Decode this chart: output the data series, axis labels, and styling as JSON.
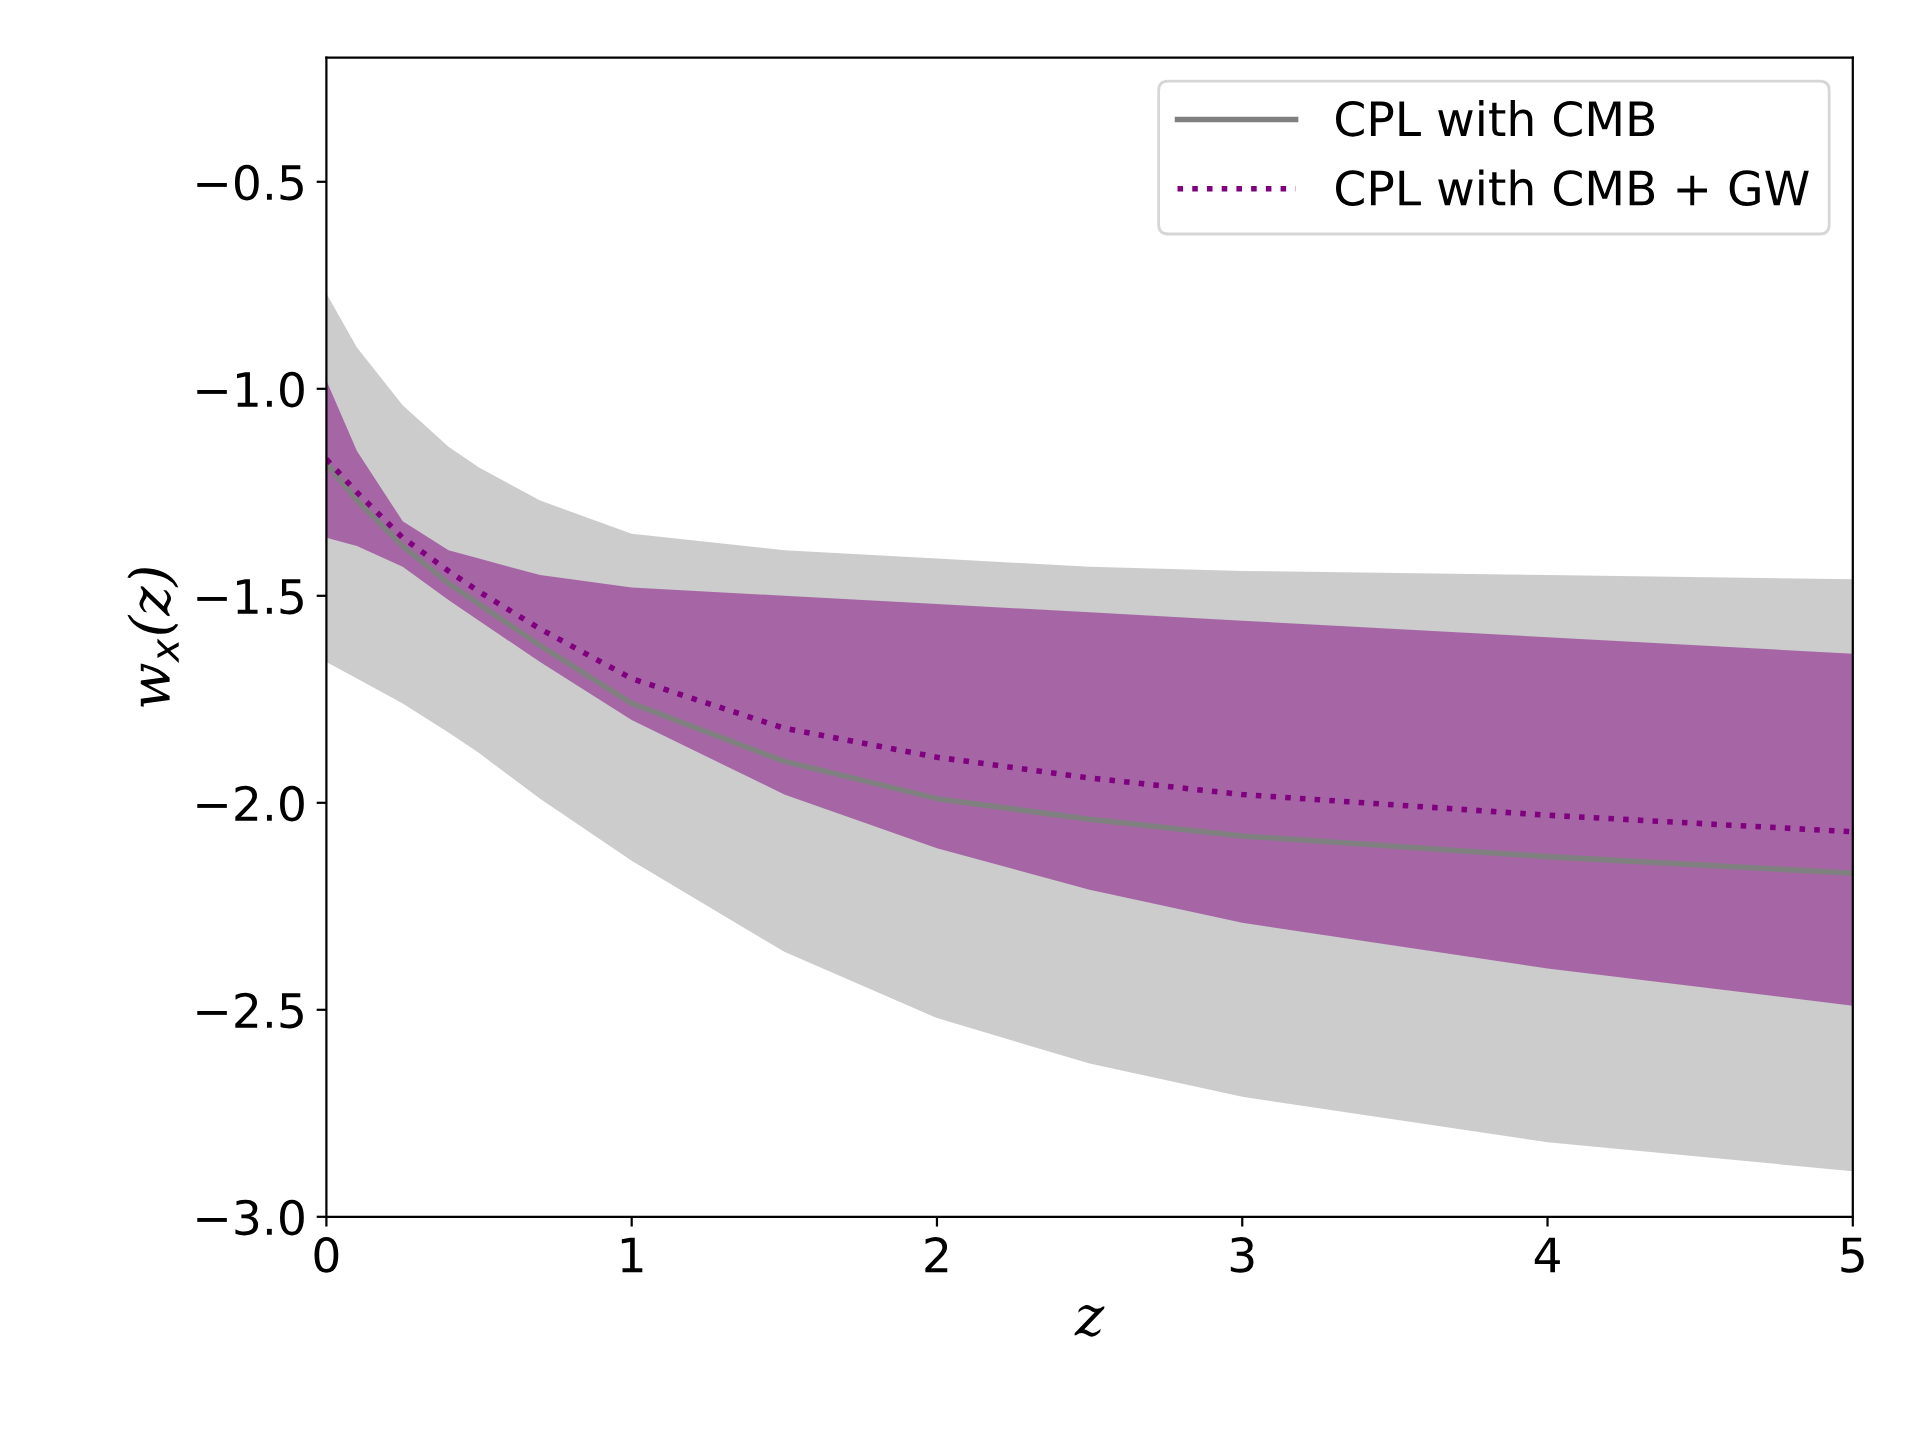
{
  "chart_data": {
    "type": "line",
    "xlabel": "z",
    "ylabel": "w$_{x}$(z)",
    "xlim": [
      0,
      5
    ],
    "ylim": [
      -3.0,
      -0.2
    ],
    "xticks": [
      0,
      1,
      2,
      3,
      4,
      5
    ],
    "yticks": [
      {
        "value": -3.0,
        "label": "−3.0"
      },
      {
        "value": -2.5,
        "label": "−2.5"
      },
      {
        "value": -2.0,
        "label": "−2.0"
      },
      {
        "value": -1.5,
        "label": "−1.5"
      },
      {
        "value": -1.0,
        "label": "−1.0"
      },
      {
        "value": -0.5,
        "label": "−0.5"
      }
    ],
    "grid": false,
    "legend": "top right",
    "marker": "none",
    "series": [
      {
        "name": "CPL with CMB",
        "color": "#808080",
        "line_style": "solid",
        "x": [
          0,
          0.1,
          0.25,
          0.4,
          0.5,
          0.7,
          1,
          1.5,
          2,
          2.5,
          3,
          4,
          5
        ],
        "values": [
          -1.18,
          -1.27,
          -1.38,
          -1.47,
          -1.52,
          -1.62,
          -1.76,
          -1.9,
          -1.99,
          -2.04,
          -2.08,
          -2.13,
          -2.17
        ],
        "lower": [
          -1.66,
          -1.7,
          -1.76,
          -1.83,
          -1.88,
          -1.99,
          -2.14,
          -2.36,
          -2.52,
          -2.63,
          -2.71,
          -2.82,
          -2.89
        ],
        "upper": [
          -0.77,
          -0.9,
          -1.04,
          -1.14,
          -1.19,
          -1.27,
          -1.35,
          -1.39,
          -1.41,
          -1.43,
          -1.44,
          -1.45,
          -1.46
        ]
      },
      {
        "name": "CPL with CMB + GW",
        "color": "#800080",
        "line_style": "dotted",
        "x": [
          0,
          0.1,
          0.25,
          0.4,
          0.5,
          0.7,
          1,
          1.5,
          2,
          2.5,
          3,
          4,
          5
        ],
        "values": [
          -1.17,
          -1.25,
          -1.36,
          -1.44,
          -1.49,
          -1.58,
          -1.7,
          -1.82,
          -1.89,
          -1.94,
          -1.98,
          -2.03,
          -2.07
        ],
        "lower": [
          -1.36,
          -1.38,
          -1.43,
          -1.51,
          -1.56,
          -1.66,
          -1.8,
          -1.98,
          -2.11,
          -2.21,
          -2.29,
          -2.4,
          -2.49
        ],
        "upper": [
          -0.98,
          -1.15,
          -1.32,
          -1.39,
          -1.41,
          -1.45,
          -1.48,
          -1.5,
          -1.52,
          -1.54,
          -1.56,
          -1.6,
          -1.64
        ]
      }
    ]
  }
}
